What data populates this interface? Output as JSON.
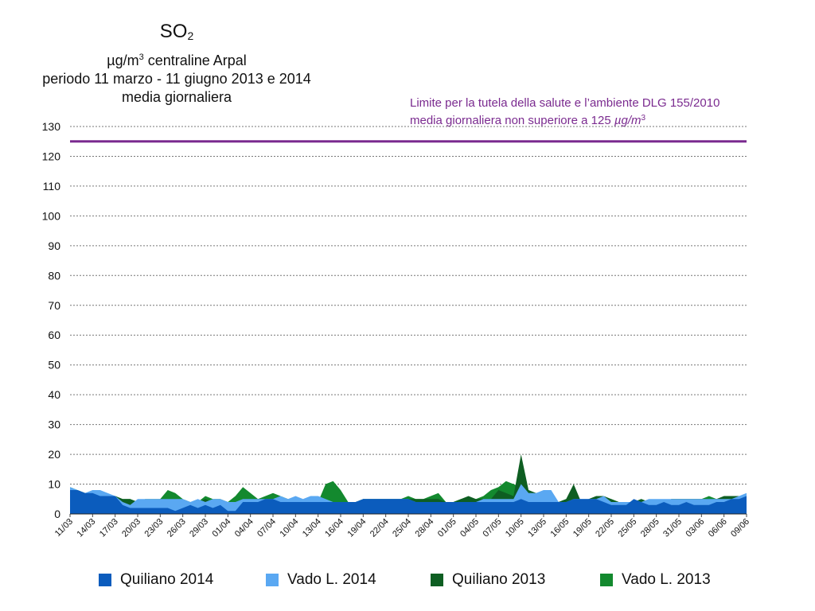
{
  "title": {
    "main": "SO",
    "main_sub": "2",
    "unit_pre": "µg/m",
    "unit_sup": "3",
    "unit_post": " centraline Arpal",
    "period": "periodo 11 marzo - 11 giugno 2013 e 2014",
    "note": "media giornaliera"
  },
  "limit_note": {
    "line1": "Limite per la tutela della salute e l’ambiente DLG 155/2010",
    "line2_pre": "media giornaliera non superiore a 125 ",
    "line2_unit": "µg/m",
    "line2_sup": "3"
  },
  "colors": {
    "quiliano_2014": "#0b5cbd",
    "vado_2014": "#5aa8f2",
    "quiliano_2013": "#0e5e22",
    "vado_2013": "#13892e",
    "limit": "#7a2a8f",
    "grid": "#777777"
  },
  "chart_data": {
    "type": "area",
    "title": "SO2 µg/m3 centraline Arpal periodo 11 marzo - 11 giugno 2013 e 2014 media giornaliera",
    "xlabel": "",
    "ylabel": "",
    "ylim": [
      0,
      130
    ],
    "yticks": [
      0,
      10,
      20,
      30,
      40,
      50,
      60,
      70,
      80,
      90,
      100,
      110,
      120,
      130
    ],
    "grid": true,
    "legend_placement": "bottom",
    "x_count": 91,
    "x_ticks": [
      {
        "i": 0,
        "label": "11/03"
      },
      {
        "i": 3,
        "label": "14/03"
      },
      {
        "i": 6,
        "label": "17/03"
      },
      {
        "i": 9,
        "label": "20/03"
      },
      {
        "i": 12,
        "label": "23/03"
      },
      {
        "i": 15,
        "label": "26/03"
      },
      {
        "i": 18,
        "label": "29/03"
      },
      {
        "i": 21,
        "label": "01/04"
      },
      {
        "i": 24,
        "label": "04/04"
      },
      {
        "i": 27,
        "label": "07/04"
      },
      {
        "i": 30,
        "label": "10/04"
      },
      {
        "i": 33,
        "label": "13/04"
      },
      {
        "i": 36,
        "label": "16/04"
      },
      {
        "i": 39,
        "label": "19/04"
      },
      {
        "i": 42,
        "label": "22/04"
      },
      {
        "i": 45,
        "label": "25/04"
      },
      {
        "i": 48,
        "label": "28/04"
      },
      {
        "i": 51,
        "label": "01/05"
      },
      {
        "i": 54,
        "label": "04/05"
      },
      {
        "i": 57,
        "label": "07/05"
      },
      {
        "i": 60,
        "label": "10/05"
      },
      {
        "i": 63,
        "label": "13/05"
      },
      {
        "i": 66,
        "label": "16/05"
      },
      {
        "i": 69,
        "label": "19/05"
      },
      {
        "i": 72,
        "label": "22/05"
      },
      {
        "i": 75,
        "label": "25/05"
      },
      {
        "i": 78,
        "label": "28/05"
      },
      {
        "i": 81,
        "label": "31/05"
      },
      {
        "i": 84,
        "label": "03/06"
      },
      {
        "i": 87,
        "label": "06/06"
      },
      {
        "i": 90,
        "label": "09/06"
      }
    ],
    "limit_value": 125,
    "series": [
      {
        "name": "Vado L. 2013",
        "key": "vado_2013",
        "values": [
          9,
          8,
          7,
          7,
          6,
          6,
          6,
          5,
          5,
          4,
          5,
          5,
          5,
          8,
          7,
          5,
          4,
          4,
          6,
          5,
          5,
          4,
          6,
          9,
          7,
          5,
          6,
          7,
          6,
          5,
          4,
          4,
          5,
          4,
          10,
          11,
          8,
          4,
          4,
          5,
          5,
          5,
          5,
          5,
          5,
          6,
          5,
          5,
          6,
          7,
          4,
          4,
          5,
          5,
          5,
          6,
          8,
          9,
          11,
          10,
          9,
          8,
          6,
          4,
          4,
          4,
          5,
          5,
          4,
          4,
          5,
          5,
          5,
          4,
          4,
          4,
          5,
          4,
          4,
          4,
          5,
          5,
          5,
          5,
          5,
          6,
          5,
          5,
          5,
          6,
          6
        ]
      },
      {
        "name": "Quiliano 2013",
        "key": "quiliano_2013",
        "values": [
          8,
          8,
          7,
          7,
          6,
          6,
          6,
          5,
          5,
          4,
          4,
          4,
          5,
          5,
          5,
          4,
          4,
          4,
          5,
          4,
          4,
          4,
          4,
          5,
          5,
          5,
          5,
          5,
          4,
          4,
          4,
          4,
          4,
          4,
          4,
          4,
          4,
          4,
          4,
          5,
          5,
          5,
          5,
          5,
          5,
          5,
          5,
          5,
          5,
          5,
          4,
          4,
          5,
          6,
          5,
          5,
          5,
          8,
          7,
          6,
          20,
          8,
          7,
          6,
          5,
          4,
          5,
          10,
          4,
          5,
          6,
          6,
          5,
          4,
          4,
          4,
          5,
          4,
          4,
          4,
          5,
          5,
          5,
          5,
          5,
          5,
          5,
          6,
          6,
          6,
          6
        ]
      },
      {
        "name": "Vado L. 2014",
        "key": "vado_2014",
        "values": [
          9,
          8,
          7,
          8,
          8,
          7,
          6,
          4,
          3,
          5,
          5,
          5,
          5,
          5,
          5,
          5,
          4,
          5,
          4,
          5,
          5,
          4,
          4,
          5,
          5,
          5,
          5,
          5,
          6,
          5,
          6,
          5,
          6,
          6,
          5,
          4,
          4,
          4,
          4,
          5,
          5,
          5,
          5,
          5,
          5,
          5,
          4,
          4,
          4,
          4,
          4,
          4,
          4,
          4,
          4,
          5,
          5,
          5,
          5,
          5,
          10,
          7,
          7,
          8,
          8,
          4,
          4,
          5,
          5,
          5,
          5,
          6,
          4,
          4,
          4,
          4,
          4,
          5,
          5,
          5,
          5,
          5,
          5,
          5,
          5,
          5,
          5,
          5,
          5,
          6,
          7
        ]
      },
      {
        "name": "Quiliano 2014",
        "key": "quiliano_2014",
        "values": [
          8,
          8,
          7,
          7,
          6,
          6,
          6,
          3,
          2,
          2,
          2,
          2,
          2,
          2,
          1,
          2,
          3,
          2,
          3,
          2,
          3,
          1,
          1,
          4,
          4,
          4,
          5,
          5,
          4,
          4,
          4,
          4,
          4,
          4,
          4,
          4,
          4,
          4,
          4,
          5,
          5,
          5,
          5,
          5,
          5,
          5,
          4,
          4,
          4,
          4,
          4,
          4,
          4,
          4,
          4,
          4,
          4,
          4,
          4,
          4,
          5,
          4,
          4,
          4,
          4,
          4,
          4,
          5,
          5,
          5,
          5,
          4,
          3,
          3,
          3,
          5,
          4,
          3,
          3,
          4,
          3,
          3,
          4,
          3,
          3,
          3,
          4,
          4,
          5,
          5,
          6
        ]
      }
    ]
  },
  "legend": [
    {
      "label": "Quiliano 2014",
      "key": "quiliano_2014"
    },
    {
      "label": "Vado L. 2014",
      "key": "vado_2014"
    },
    {
      "label": "Quiliano 2013",
      "key": "quiliano_2013"
    },
    {
      "label": "Vado L. 2013",
      "key": "vado_2013"
    }
  ]
}
